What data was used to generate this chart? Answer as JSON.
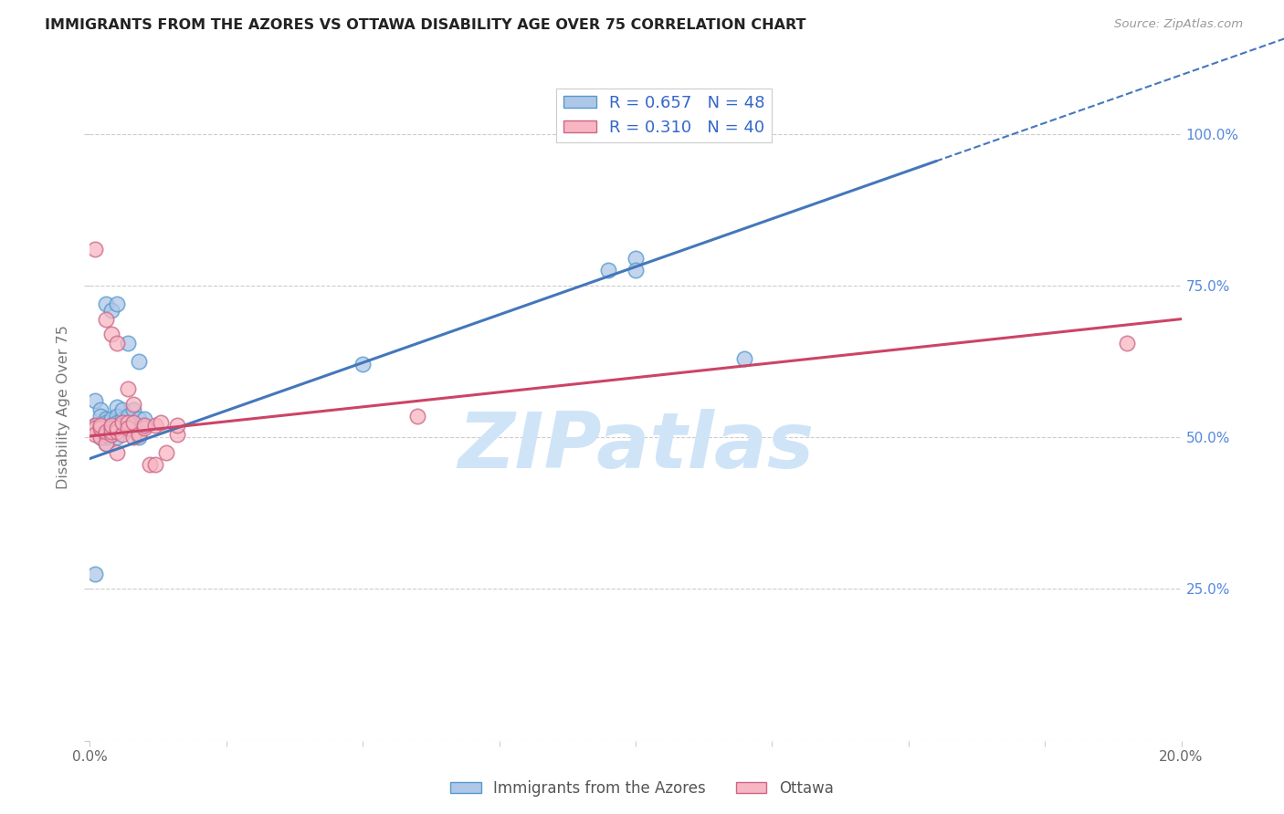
{
  "title": "IMMIGRANTS FROM THE AZORES VS OTTAWA DISABILITY AGE OVER 75 CORRELATION CHART",
  "source": "Source: ZipAtlas.com",
  "ylabel": "Disability Age Over 75",
  "xlim": [
    0.0,
    0.2
  ],
  "ylim": [
    0.0,
    1.1
  ],
  "ytick_positions": [
    0.0,
    0.25,
    0.5,
    0.75,
    1.0
  ],
  "ytick_labels_right": [
    "",
    "25.0%",
    "50.0%",
    "75.0%",
    "100.0%"
  ],
  "legend1_label": "R = 0.657   N = 48",
  "legend2_label": "R = 0.310   N = 40",
  "legend_xlabel1": "Immigrants from the Azores",
  "legend_xlabel2": "Ottawa",
  "blue_color": "#aec7e8",
  "pink_color": "#f7b6c2",
  "blue_edge_color": "#5599cc",
  "pink_edge_color": "#cc6688",
  "blue_line_color": "#4477bb",
  "pink_line_color": "#cc4466",
  "blue_scatter": [
    [
      0.001,
      0.52
    ],
    [
      0.001,
      0.56
    ],
    [
      0.001,
      0.515
    ],
    [
      0.002,
      0.545
    ],
    [
      0.002,
      0.5
    ],
    [
      0.002,
      0.535
    ],
    [
      0.003,
      0.52
    ],
    [
      0.003,
      0.49
    ],
    [
      0.003,
      0.515
    ],
    [
      0.003,
      0.5
    ],
    [
      0.003,
      0.53
    ],
    [
      0.003,
      0.525
    ],
    [
      0.004,
      0.505
    ],
    [
      0.004,
      0.52
    ],
    [
      0.004,
      0.515
    ],
    [
      0.004,
      0.51
    ],
    [
      0.004,
      0.53
    ],
    [
      0.004,
      0.52
    ],
    [
      0.005,
      0.55
    ],
    [
      0.005,
      0.5
    ],
    [
      0.005,
      0.535
    ],
    [
      0.005,
      0.525
    ],
    [
      0.006,
      0.515
    ],
    [
      0.006,
      0.53
    ],
    [
      0.006,
      0.545
    ],
    [
      0.006,
      0.52
    ],
    [
      0.007,
      0.52
    ],
    [
      0.007,
      0.515
    ],
    [
      0.007,
      0.53
    ],
    [
      0.007,
      0.535
    ],
    [
      0.008,
      0.545
    ],
    [
      0.008,
      0.52
    ],
    [
      0.008,
      0.515
    ],
    [
      0.009,
      0.53
    ],
    [
      0.009,
      0.5
    ],
    [
      0.01,
      0.52
    ],
    [
      0.01,
      0.53
    ],
    [
      0.003,
      0.72
    ],
    [
      0.004,
      0.71
    ],
    [
      0.005,
      0.72
    ],
    [
      0.007,
      0.655
    ],
    [
      0.009,
      0.625
    ],
    [
      0.095,
      0.775
    ],
    [
      0.1,
      0.795
    ],
    [
      0.1,
      0.775
    ],
    [
      0.12,
      0.63
    ],
    [
      0.001,
      0.275
    ],
    [
      0.05,
      0.62
    ]
  ],
  "pink_scatter": [
    [
      0.001,
      0.52
    ],
    [
      0.001,
      0.515
    ],
    [
      0.001,
      0.505
    ],
    [
      0.002,
      0.5
    ],
    [
      0.002,
      0.515
    ],
    [
      0.002,
      0.52
    ],
    [
      0.003,
      0.505
    ],
    [
      0.003,
      0.49
    ],
    [
      0.003,
      0.51
    ],
    [
      0.004,
      0.515
    ],
    [
      0.004,
      0.505
    ],
    [
      0.004,
      0.51
    ],
    [
      0.004,
      0.52
    ],
    [
      0.005,
      0.475
    ],
    [
      0.005,
      0.51
    ],
    [
      0.005,
      0.515
    ],
    [
      0.006,
      0.505
    ],
    [
      0.006,
      0.525
    ],
    [
      0.007,
      0.525
    ],
    [
      0.007,
      0.515
    ],
    [
      0.008,
      0.525
    ],
    [
      0.008,
      0.5
    ],
    [
      0.009,
      0.505
    ],
    [
      0.01,
      0.515
    ],
    [
      0.01,
      0.52
    ],
    [
      0.011,
      0.455
    ],
    [
      0.012,
      0.52
    ],
    [
      0.001,
      0.81
    ],
    [
      0.003,
      0.695
    ],
    [
      0.004,
      0.67
    ],
    [
      0.005,
      0.655
    ],
    [
      0.007,
      0.58
    ],
    [
      0.008,
      0.555
    ],
    [
      0.012,
      0.455
    ],
    [
      0.013,
      0.525
    ],
    [
      0.014,
      0.475
    ],
    [
      0.016,
      0.505
    ],
    [
      0.016,
      0.52
    ],
    [
      0.19,
      0.655
    ],
    [
      0.06,
      0.535
    ]
  ],
  "blue_line_x0": 0.0,
  "blue_line_y0": 0.465,
  "blue_line_x1": 0.155,
  "blue_line_y1": 0.955,
  "pink_line_x0": 0.0,
  "pink_line_y0": 0.502,
  "pink_line_x1": 0.2,
  "pink_line_y1": 0.695,
  "watermark": "ZIPatlas",
  "watermark_color": "#d0e4f8",
  "background_color": "#ffffff",
  "grid_color": "#cccccc"
}
